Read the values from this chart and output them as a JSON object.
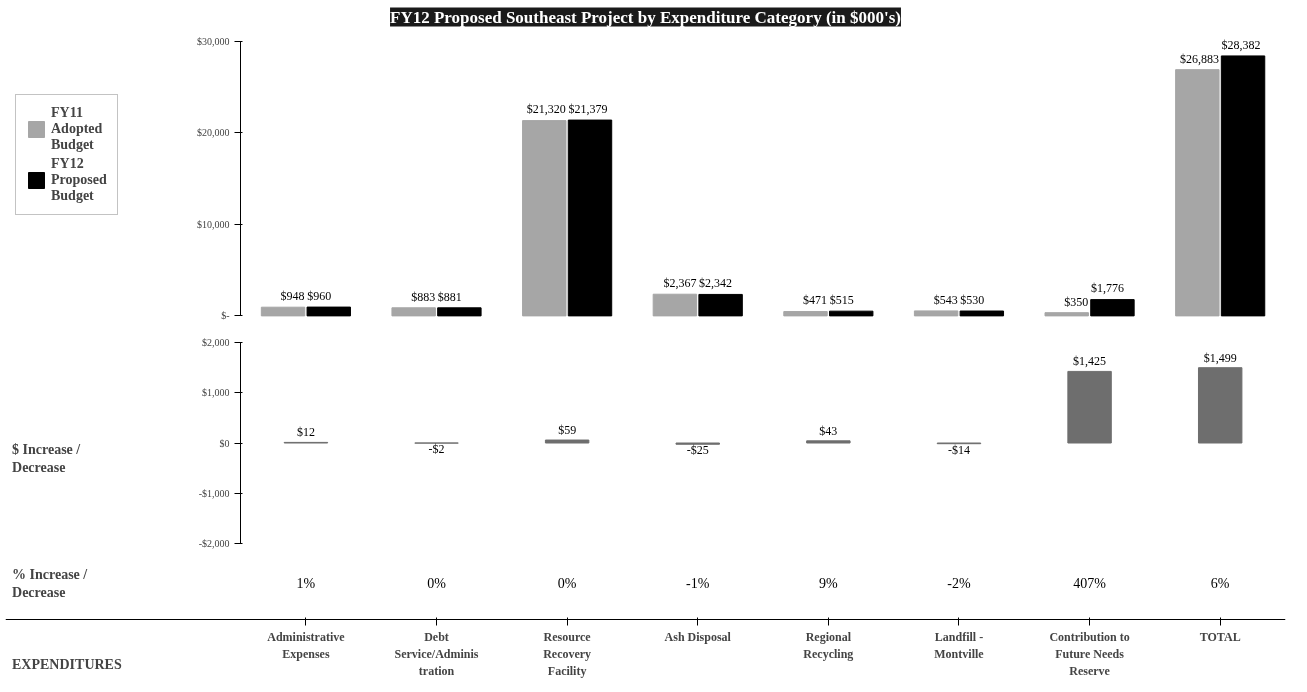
{
  "chart_data": [
    {
      "type": "bar",
      "title": "FY12 Proposed Southeast Project by Expenditure Category (in $000's)",
      "categories": [
        null,
        null,
        null,
        null,
        null,
        null,
        null,
        null
      ],
      "series": [
        {
          "name": "FY11 Adopted Budget",
          "color": "#a6a6a6",
          "values": [
            948,
            883,
            21320,
            2367,
            471,
            543,
            350,
            26883
          ],
          "value_labels": [
            "$948",
            "$883",
            "$21,320",
            "$2,367",
            "$471",
            "$543",
            "$350",
            "$26,883"
          ]
        },
        {
          "name": "FY12 Proposed Budget",
          "color": "#000000",
          "values": [
            960,
            881,
            21379,
            2342,
            515,
            530,
            1776,
            28382
          ],
          "value_labels": [
            "$960",
            "$881",
            "$21,379",
            "$2,342",
            "$515",
            "$530",
            "$1,776",
            "$28,382"
          ]
        }
      ],
      "ylim": [
        0,
        30000
      ],
      "yticks": [
        {
          "value": 0,
          "label": "$-"
        },
        {
          "value": 10000,
          "label": "$10,000"
        },
        {
          "value": 20000,
          "label": "$20,000"
        },
        {
          "value": 30000,
          "label": "$30,000"
        }
      ],
      "legend": "left",
      "tick_labels": "y",
      "grid": false
    },
    {
      "type": "bar",
      "ylabel": "$ Increase / Decrease",
      "categories": [
        null,
        null,
        null,
        null,
        null,
        null,
        null,
        null
      ],
      "series": [
        {
          "color": "#6e6e6e",
          "values": [
            12,
            -2,
            59,
            -25,
            43,
            -14,
            1425,
            1499
          ],
          "value_labels": [
            "$12",
            "-$2",
            "$59",
            "-$25",
            "$43",
            "-$14",
            "$1,425",
            "$1,499"
          ]
        }
      ],
      "ylim": [
        -2000,
        2000
      ],
      "yticks": [
        {
          "value": -2000,
          "label": "-$2,000"
        },
        {
          "value": -1000,
          "label": "-$1,000"
        },
        {
          "value": 0,
          "label": "$0"
        },
        {
          "value": 1000,
          "label": "$1,000"
        },
        {
          "value": 2000,
          "label": "$2,000"
        }
      ],
      "tick_labels": "y",
      "grid": false
    },
    {
      "type": "other",
      "ylabel": "% Increase / Decrease",
      "xlabel": "EXPENDITURES",
      "categories": [
        "Administrative Expenses",
        "Debt Service/Administration",
        "Resource Recovery Facility",
        "Ash Disposal",
        "Regional Recycling",
        "Landfill - Montville",
        "Contribution to Future Needs Reserve",
        "TOTAL"
      ],
      "value_labels": [
        "1%",
        "0%",
        "0%",
        "-1%",
        "9%",
        "-2%",
        "407%",
        "6%"
      ]
    }
  ]
}
